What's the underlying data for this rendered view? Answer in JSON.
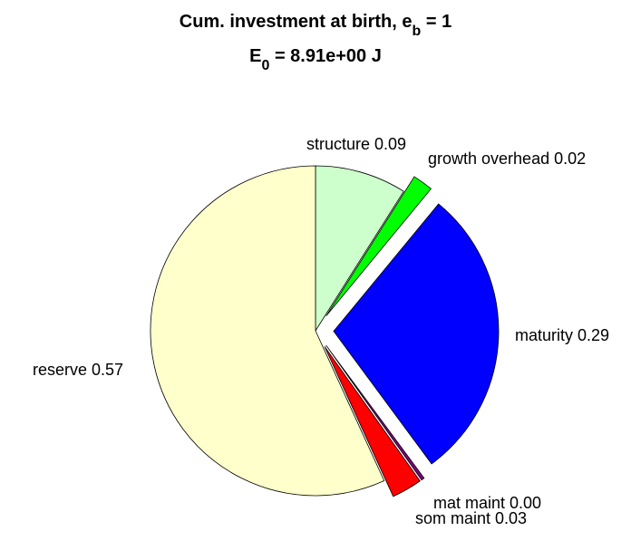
{
  "chart_data": {
    "type": "pie",
    "title_lines": [
      {
        "parts": [
          {
            "text": "Cum. investment at birth, e"
          },
          {
            "text": "b",
            "sub": true
          },
          {
            "text": " = 1"
          }
        ]
      },
      {
        "parts": [
          {
            "text": "E"
          },
          {
            "text": "0",
            "sub": true
          },
          {
            "text": " = 8.91e+00 J"
          }
        ]
      }
    ],
    "slices": [
      {
        "name": "structure",
        "label": "structure 0.09",
        "value": 0.09,
        "color": "#ccffcc",
        "exploded": false
      },
      {
        "name": "growth overhead",
        "label": "growth overhead 0.02",
        "value": 0.02,
        "color": "#00ff00",
        "exploded": true
      },
      {
        "name": "maturity",
        "label": "maturity 0.29",
        "value": 0.29,
        "color": "#0000ff",
        "exploded": true
      },
      {
        "name": "mat maint",
        "label": "mat maint 0.00",
        "value": 0.003,
        "color": "#800080",
        "exploded": true
      },
      {
        "name": "som maint",
        "label": "som maint 0.03",
        "value": 0.03,
        "color": "#ff0000",
        "exploded": true
      },
      {
        "name": "reserve",
        "label": "reserve 0.57",
        "value": 0.57,
        "color": "#ffffcc",
        "exploded": false
      }
    ],
    "start_angle": "12 o'clock",
    "direction": "clockwise",
    "legend": "none"
  }
}
